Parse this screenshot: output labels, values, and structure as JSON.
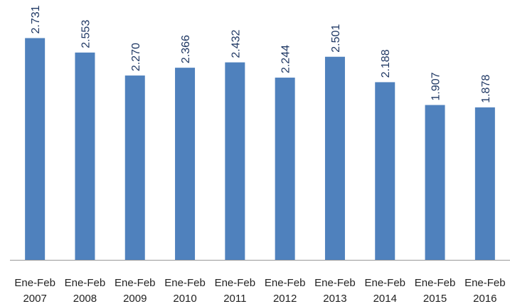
{
  "chart_data": {
    "type": "bar",
    "categories": [
      [
        "Ene-Feb",
        "2007"
      ],
      [
        "Ene-Feb",
        "2008"
      ],
      [
        "Ene-Feb",
        "2009"
      ],
      [
        "Ene-Feb",
        "2010"
      ],
      [
        "Ene-Feb",
        "2011"
      ],
      [
        "Ene-Feb",
        "2012"
      ],
      [
        "Ene-Feb",
        "2013"
      ],
      [
        "Ene-Feb",
        "2014"
      ],
      [
        "Ene-Feb",
        "2015"
      ],
      [
        "Ene-Feb",
        "2016"
      ]
    ],
    "values": [
      2.731,
      2.553,
      2.27,
      2.366,
      2.432,
      2.244,
      2.501,
      2.188,
      1.907,
      1.878
    ],
    "value_labels": [
      "2.731",
      "2.553",
      "2.270",
      "2.366",
      "2.432",
      "2.244",
      "2.501",
      "2.188",
      "1.907",
      "1.878"
    ],
    "color": "#4f81bd",
    "ylim": [
      0,
      3.2
    ]
  }
}
